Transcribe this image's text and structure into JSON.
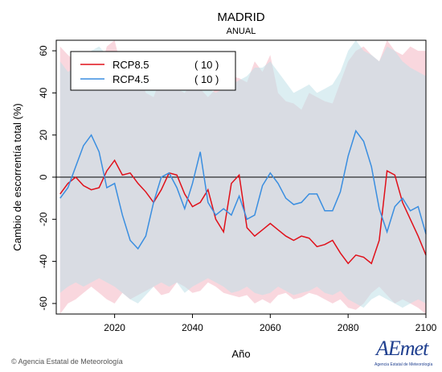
{
  "chart_data": {
    "type": "line",
    "title": "MADRID",
    "subtitle": "ANUAL",
    "xlabel": "Año",
    "ylabel": "Cambio de escorrentía total (%)",
    "xlim": [
      2005,
      2100
    ],
    "ylim": [
      -65,
      65
    ],
    "xticks": [
      2020,
      2040,
      2060,
      2080,
      2100
    ],
    "yticks": [
      -60,
      -40,
      -20,
      0,
      20,
      40,
      60
    ],
    "reference_line": 0,
    "legend_position": "top-left",
    "series": [
      {
        "name": "RCP8.5",
        "count_label": "( 10 )",
        "color": "#e0101a",
        "band_color": "#f4b6c2",
        "x": [
          2006,
          2008,
          2010,
          2012,
          2014,
          2016,
          2018,
          2020,
          2022,
          2024,
          2026,
          2028,
          2030,
          2032,
          2034,
          2036,
          2038,
          2040,
          2042,
          2044,
          2046,
          2048,
          2050,
          2052,
          2054,
          2056,
          2058,
          2060,
          2062,
          2064,
          2066,
          2068,
          2070,
          2072,
          2074,
          2076,
          2078,
          2080,
          2082,
          2084,
          2086,
          2088,
          2090,
          2092,
          2094,
          2096,
          2098,
          2100
        ],
        "values": [
          -8,
          -3,
          0,
          -4,
          -6,
          -5,
          3,
          8,
          1,
          2,
          -3,
          -7,
          -12,
          -6,
          2,
          1,
          -8,
          -14,
          -12,
          -6,
          -20,
          -26,
          -3,
          1,
          -24,
          -28,
          -25,
          -22,
          -25,
          -28,
          -30,
          -28,
          -29,
          -33,
          -32,
          -30,
          -36,
          -41,
          -37,
          -38,
          -41,
          -30,
          3,
          1,
          -12,
          -20,
          -28,
          -37
        ],
        "band_upper": [
          62,
          58,
          55,
          53,
          50,
          48,
          62,
          65,
          50,
          48,
          52,
          40,
          38,
          48,
          50,
          42,
          40,
          45,
          42,
          38,
          42,
          45,
          48,
          47,
          45,
          55,
          50,
          58,
          40,
          36,
          35,
          32,
          40,
          38,
          36,
          35,
          45,
          55,
          60,
          62,
          58,
          55,
          65,
          60,
          58,
          62,
          60,
          60
        ],
        "band_lower": [
          -65,
          -60,
          -58,
          -55,
          -52,
          -55,
          -58,
          -60,
          -55,
          -58,
          -56,
          -54,
          -52,
          -56,
          -55,
          -50,
          -52,
          -55,
          -54,
          -50,
          -52,
          -55,
          -56,
          -57,
          -56,
          -60,
          -58,
          -60,
          -56,
          -55,
          -58,
          -57,
          -55,
          -56,
          -58,
          -60,
          -58,
          -62,
          -63,
          -60,
          -55,
          -52,
          -56,
          -60,
          -58,
          -60,
          -62,
          -65
        ]
      },
      {
        "name": "RCP4.5",
        "count_label": "( 10 )",
        "color": "#3a8ee0",
        "band_color": "#bfe0e8",
        "x": [
          2006,
          2008,
          2010,
          2012,
          2014,
          2016,
          2018,
          2020,
          2022,
          2024,
          2026,
          2028,
          2030,
          2032,
          2034,
          2036,
          2038,
          2040,
          2042,
          2044,
          2046,
          2048,
          2050,
          2052,
          2054,
          2056,
          2058,
          2060,
          2062,
          2064,
          2066,
          2068,
          2070,
          2072,
          2074,
          2076,
          2078,
          2080,
          2082,
          2084,
          2086,
          2088,
          2090,
          2092,
          2094,
          2096,
          2098,
          2100
        ],
        "values": [
          -10,
          -5,
          5,
          15,
          20,
          12,
          -5,
          -3,
          -18,
          -30,
          -34,
          -28,
          -12,
          0,
          2,
          -5,
          -15,
          -3,
          12,
          -12,
          -18,
          -15,
          -18,
          -9,
          -20,
          -18,
          -4,
          2,
          -3,
          -10,
          -13,
          -12,
          -8,
          -8,
          -16,
          -16,
          -7,
          10,
          22,
          17,
          5,
          -15,
          -26,
          -14,
          -10,
          -16,
          -14,
          -27
        ],
        "band_upper": [
          55,
          50,
          52,
          58,
          60,
          62,
          58,
          55,
          50,
          48,
          50,
          46,
          44,
          46,
          48,
          44,
          42,
          45,
          44,
          42,
          40,
          42,
          44,
          46,
          48,
          52,
          52,
          55,
          50,
          45,
          40,
          42,
          44,
          40,
          42,
          44,
          50,
          60,
          65,
          60,
          58,
          55,
          62,
          60,
          55,
          52,
          50,
          48
        ],
        "band_lower": [
          -55,
          -52,
          -50,
          -52,
          -50,
          -48,
          -50,
          -52,
          -55,
          -58,
          -60,
          -56,
          -52,
          -50,
          -52,
          -50,
          -55,
          -52,
          -50,
          -48,
          -50,
          -52,
          -55,
          -54,
          -52,
          -55,
          -56,
          -55,
          -52,
          -54,
          -56,
          -55,
          -54,
          -52,
          -55,
          -56,
          -54,
          -58,
          -60,
          -62,
          -58,
          -56,
          -58,
          -60,
          -62,
          -60,
          -58,
          -60
        ]
      }
    ]
  },
  "footer": {
    "credit": "Agencia Estatal de Meteorología",
    "logo_text": "AEmet",
    "logo_sub": "Agencia Estatal de Meteorología"
  }
}
